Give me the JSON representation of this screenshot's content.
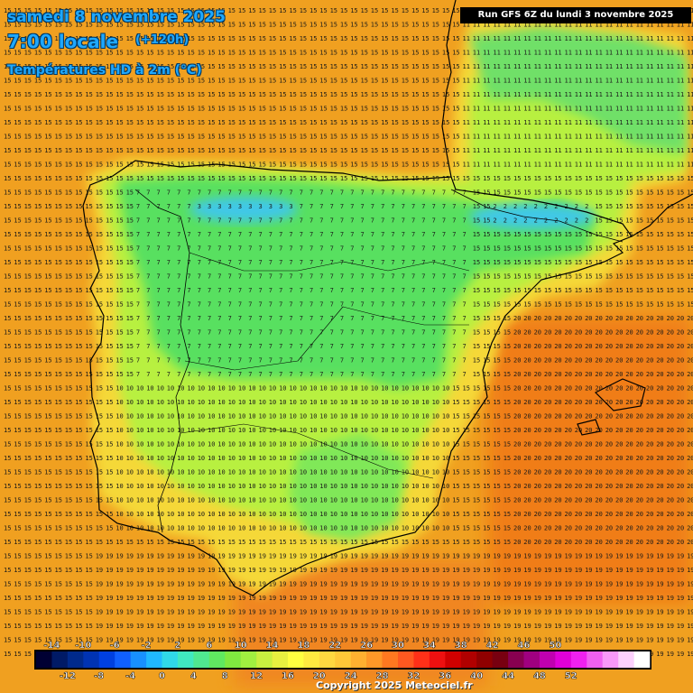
{
  "header": {
    "date": "samedi 8 novembre 2025",
    "time": "7:00 locale",
    "offset": "(+120h)",
    "field": "Températures HD à 2m (°C)",
    "run": "Run GFS 6Z du lundi 3 novembre 2025"
  },
  "footer": {
    "copyright": "Copyright 2025 Meteociel.fr"
  },
  "legend": {
    "top_labels": [
      "-14",
      "-10",
      "-6",
      "-2",
      "2",
      "6",
      "10",
      "14",
      "18",
      "22",
      "26",
      "30",
      "34",
      "38",
      "42",
      "46",
      "50"
    ],
    "bottom_labels": [
      "-12",
      "-8",
      "-4",
      "0",
      "4",
      "8",
      "12",
      "16",
      "20",
      "24",
      "28",
      "32",
      "36",
      "40",
      "44",
      "48",
      "52"
    ],
    "colors": [
      "#000033",
      "#001a66",
      "#002a8c",
      "#0033b3",
      "#0040e0",
      "#1060ff",
      "#1890ff",
      "#20b8ff",
      "#30d8e8",
      "#40e8c0",
      "#50e890",
      "#60e860",
      "#80e840",
      "#a0f040",
      "#c8f040",
      "#e8f040",
      "#ffff40",
      "#ffea40",
      "#ffd840",
      "#ffc838",
      "#ffb030",
      "#ff9828",
      "#ff7820",
      "#ff5820",
      "#ff3018",
      "#ee1010",
      "#d00000",
      "#b00000",
      "#900000",
      "#780010",
      "#880050",
      "#a00080",
      "#c000b0",
      "#e000d8",
      "#f020f0",
      "#f060f0",
      "#f898f8",
      "#fcd0fc",
      "#ffffff"
    ]
  },
  "map": {
    "region_numbers": {
      "atlantic": "15",
      "north_plateau": "7",
      "cantabrian": "3",
      "pyrenees": "2",
      "central": "10",
      "south": "19",
      "mediterranean": "20",
      "france": "11"
    },
    "colors": {
      "sea_warm": "#f0a020",
      "sea_hot": "#f08020",
      "coast_yellow": "#f8e040",
      "plateau_green": "#50e060",
      "cold_cyan": "#40c8e8",
      "lime": "#b0f040",
      "border": "#000000"
    }
  }
}
